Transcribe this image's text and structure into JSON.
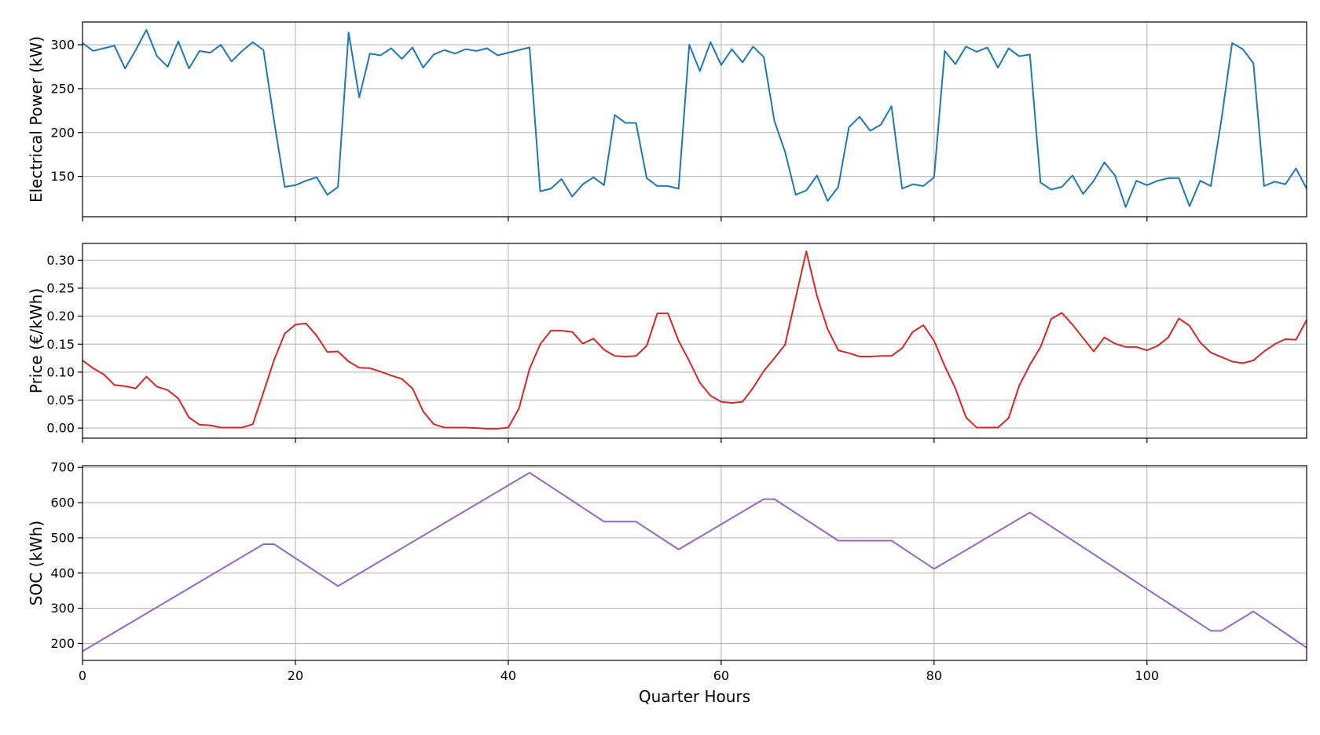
{
  "chart_data": [
    {
      "type": "line",
      "ylabel": "Electrical Power (kW)",
      "xlabel": "",
      "xlim": [
        0,
        115
      ],
      "ylim": [
        104,
        326
      ],
      "xticks": [
        0,
        20,
        40,
        60,
        80,
        100
      ],
      "yticks": [
        150,
        200,
        250,
        300
      ],
      "ytick_labels": [
        "150",
        "200",
        "250",
        "300"
      ],
      "show_xtick_labels": false,
      "grid": true,
      "color": "#1f77b4",
      "x": [
        0,
        1,
        2,
        3,
        4,
        5,
        6,
        7,
        8,
        9,
        10,
        11,
        12,
        13,
        14,
        15,
        16,
        17,
        18,
        19,
        20,
        21,
        22,
        23,
        24,
        25,
        26,
        27,
        28,
        29,
        30,
        31,
        32,
        33,
        34,
        35,
        36,
        37,
        38,
        39,
        40,
        41,
        42,
        43,
        44,
        45,
        46,
        47,
        48,
        49,
        50,
        51,
        52,
        53,
        54,
        55,
        56,
        57,
        58,
        59,
        60,
        61,
        62,
        63,
        64,
        65,
        66,
        67,
        68,
        69,
        70,
        71,
        72,
        73,
        74,
        75,
        76,
        77,
        78,
        79,
        80,
        81,
        82,
        83,
        84,
        85,
        86,
        87,
        88,
        89,
        90,
        91,
        92,
        93,
        94,
        95,
        96,
        97,
        98,
        99,
        100,
        101,
        102,
        103,
        104,
        105,
        106,
        107,
        108,
        109,
        110,
        111,
        112,
        113,
        114,
        115
      ],
      "y": [
        302,
        293,
        296,
        299,
        273,
        294,
        317,
        287,
        275,
        304,
        273,
        293,
        291,
        300,
        281,
        293,
        303,
        294,
        213,
        138,
        140,
        145,
        149,
        129,
        138,
        314,
        240,
        290,
        288,
        296,
        284,
        297,
        274,
        289,
        294,
        290,
        295,
        293,
        296,
        288,
        291,
        294,
        297,
        133,
        136,
        147,
        127,
        141,
        149,
        140,
        220,
        211,
        211,
        148,
        139,
        139,
        136,
        300,
        270,
        303,
        277,
        295,
        280,
        298,
        286,
        213,
        178,
        129,
        134,
        151,
        122,
        138,
        206,
        218,
        202,
        209,
        230,
        136,
        141,
        139,
        149,
        293,
        278,
        298,
        292,
        297,
        274,
        296,
        287,
        289,
        143,
        135,
        138,
        151,
        130,
        145,
        166,
        151,
        115,
        145,
        140,
        145,
        148,
        148,
        116,
        145,
        139,
        215,
        302,
        295,
        279,
        139,
        144,
        141,
        159,
        136
      ]
    },
    {
      "type": "line",
      "ylabel": "Price (€/kWh)",
      "xlabel": "",
      "xlim": [
        0,
        115
      ],
      "ylim": [
        -0.018,
        0.33
      ],
      "xticks": [
        0,
        20,
        40,
        60,
        80,
        100
      ],
      "yticks": [
        0.0,
        0.05,
        0.1,
        0.15,
        0.2,
        0.25,
        0.3
      ],
      "ytick_labels": [
        "0.00",
        "0.05",
        "0.10",
        "0.15",
        "0.20",
        "0.25",
        "0.30"
      ],
      "show_xtick_labels": false,
      "grid": true,
      "color": "#d62728",
      "x": [
        0,
        1,
        2,
        3,
        4,
        5,
        6,
        7,
        8,
        9,
        10,
        11,
        12,
        13,
        14,
        15,
        16,
        17,
        18,
        19,
        20,
        21,
        22,
        23,
        24,
        25,
        26,
        27,
        28,
        29,
        30,
        31,
        32,
        33,
        34,
        35,
        36,
        37,
        38,
        39,
        40,
        41,
        42,
        43,
        44,
        45,
        46,
        47,
        48,
        49,
        50,
        51,
        52,
        53,
        54,
        55,
        56,
        57,
        58,
        59,
        60,
        61,
        62,
        63,
        64,
        65,
        66,
        67,
        68,
        69,
        70,
        71,
        72,
        73,
        74,
        75,
        76,
        77,
        78,
        79,
        80,
        81,
        82,
        83,
        84,
        85,
        86,
        87,
        88,
        89,
        90,
        91,
        92,
        93,
        94,
        95,
        96,
        97,
        98,
        99,
        100,
        101,
        102,
        103,
        104,
        105,
        106,
        107,
        108,
        109,
        110,
        111,
        112,
        113,
        114,
        115
      ],
      "y": [
        0.121,
        0.107,
        0.096,
        0.077,
        0.075,
        0.071,
        0.092,
        0.074,
        0.068,
        0.053,
        0.019,
        0.006,
        0.005,
        0.001,
        0.001,
        0.001,
        0.007,
        0.064,
        0.122,
        0.169,
        0.185,
        0.187,
        0.165,
        0.136,
        0.137,
        0.119,
        0.108,
        0.107,
        0.101,
        0.094,
        0.088,
        0.071,
        0.03,
        0.007,
        0.001,
        0.001,
        0.001,
        0.0,
        -0.001,
        -0.001,
        0.001,
        0.035,
        0.106,
        0.15,
        0.174,
        0.174,
        0.172,
        0.151,
        0.16,
        0.14,
        0.129,
        0.128,
        0.129,
        0.147,
        0.205,
        0.205,
        0.156,
        0.12,
        0.081,
        0.058,
        0.047,
        0.045,
        0.047,
        0.072,
        0.102,
        0.125,
        0.149,
        0.233,
        0.316,
        0.236,
        0.177,
        0.139,
        0.134,
        0.128,
        0.128,
        0.129,
        0.129,
        0.143,
        0.172,
        0.184,
        0.156,
        0.111,
        0.071,
        0.019,
        0.001,
        0.001,
        0.001,
        0.018,
        0.076,
        0.113,
        0.145,
        0.195,
        0.206,
        0.185,
        0.161,
        0.137,
        0.162,
        0.151,
        0.145,
        0.145,
        0.139,
        0.147,
        0.162,
        0.196,
        0.183,
        0.153,
        0.135,
        0.127,
        0.119,
        0.116,
        0.121,
        0.137,
        0.15,
        0.159,
        0.158,
        0.193
      ]
    },
    {
      "type": "line",
      "ylabel": "SOC (kWh)",
      "xlabel": "Quarter Hours",
      "xlim": [
        0,
        115
      ],
      "ylim": [
        152,
        705
      ],
      "xticks": [
        0,
        20,
        40,
        60,
        80,
        100
      ],
      "yticks": [
        200,
        300,
        400,
        500,
        600,
        700
      ],
      "ytick_labels": [
        "200",
        "300",
        "400",
        "500",
        "600",
        "700"
      ],
      "show_xtick_labels": true,
      "grid": true,
      "color": "#9467bd",
      "x": [
        0,
        17,
        18,
        24,
        42,
        49,
        52,
        56,
        64,
        65,
        71,
        76,
        80,
        89,
        106,
        107,
        110,
        115
      ],
      "y": [
        178,
        482,
        482,
        363,
        685,
        546,
        546,
        467,
        610,
        610,
        492,
        492,
        412,
        572,
        236,
        236,
        291,
        188
      ]
    }
  ]
}
